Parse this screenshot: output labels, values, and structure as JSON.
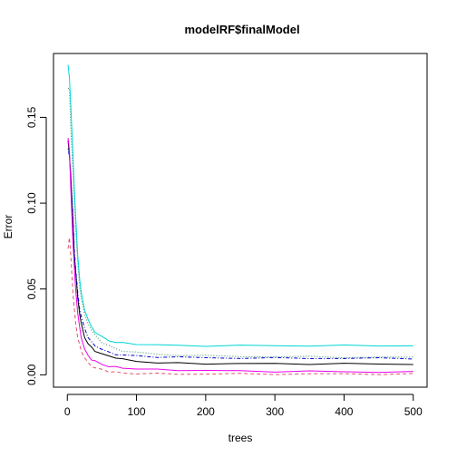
{
  "chart_data": {
    "type": "line",
    "title": "modelRF$finalModel",
    "xlabel": "trees",
    "ylabel": "Error",
    "xlim": [
      0,
      500
    ],
    "ylim": [
      0,
      0.18
    ],
    "x_ticks": [
      0,
      100,
      200,
      300,
      400,
      500
    ],
    "y_ticks": [
      0.0,
      0.05,
      0.1,
      0.15
    ],
    "x_tick_labels": [
      "0",
      "100",
      "200",
      "300",
      "400",
      "500"
    ],
    "y_tick_labels": [
      "0.00",
      "0.05",
      "0.10",
      "0.15"
    ],
    "grid": false,
    "legend": "none",
    "x": [
      1,
      3,
      5,
      8,
      10,
      12,
      15,
      18,
      20,
      25,
      30,
      35,
      40,
      50,
      60,
      70,
      80,
      100,
      130,
      160,
      200,
      250,
      300,
      350,
      400,
      450,
      500
    ],
    "series": [
      {
        "color": "#000000",
        "dash": "solid",
        "values": [
          0.135,
          0.13,
          0.115,
          0.09,
          0.072,
          0.06,
          0.045,
          0.035,
          0.03,
          0.022,
          0.018,
          0.016,
          0.014,
          0.012,
          0.011,
          0.01,
          0.009,
          0.008,
          0.007,
          0.0068,
          0.0066,
          0.0065,
          0.0065,
          0.0064,
          0.0064,
          0.0063,
          0.0063
        ]
      },
      {
        "color": "#DF536B",
        "dash": "dashed",
        "values": [
          0.075,
          0.08,
          0.068,
          0.05,
          0.038,
          0.03,
          0.022,
          0.017,
          0.014,
          0.01,
          0.007,
          0.005,
          0.004,
          0.003,
          0.002,
          0.0015,
          0.001,
          0.0008,
          0.0006,
          0.0005,
          0.0005,
          0.0005,
          0.0005,
          0.0005,
          0.0005,
          0.0005,
          0.0005
        ]
      },
      {
        "color": "#2E8B57",
        "dash": "dotted",
        "values": [
          0.168,
          0.165,
          0.145,
          0.12,
          0.1,
          0.085,
          0.065,
          0.05,
          0.045,
          0.035,
          0.03,
          0.026,
          0.023,
          0.019,
          0.017,
          0.015,
          0.014,
          0.013,
          0.012,
          0.0115,
          0.011,
          0.0108,
          0.0105,
          0.0105,
          0.0103,
          0.0102,
          0.0102
        ]
      },
      {
        "color": "#0000CC",
        "dash": "dotdash",
        "values": [
          0.13,
          0.128,
          0.115,
          0.092,
          0.075,
          0.062,
          0.048,
          0.038,
          0.034,
          0.027,
          0.022,
          0.019,
          0.017,
          0.015,
          0.013,
          0.012,
          0.0115,
          0.011,
          0.0105,
          0.0102,
          0.01,
          0.0098,
          0.0097,
          0.0097,
          0.0096,
          0.0096,
          0.0096
        ]
      },
      {
        "color": "#00D5D5",
        "dash": "solid",
        "values": [
          0.18,
          0.175,
          0.155,
          0.13,
          0.11,
          0.092,
          0.07,
          0.055,
          0.048,
          0.038,
          0.032,
          0.028,
          0.025,
          0.022,
          0.02,
          0.019,
          0.0185,
          0.018,
          0.0175,
          0.017,
          0.017,
          0.017,
          0.017,
          0.017,
          0.017,
          0.017,
          0.017
        ]
      },
      {
        "color": "#EE00EE",
        "dash": "solid",
        "values": [
          0.14,
          0.13,
          0.108,
          0.08,
          0.062,
          0.05,
          0.036,
          0.027,
          0.022,
          0.015,
          0.011,
          0.009,
          0.008,
          0.006,
          0.005,
          0.0045,
          0.004,
          0.0035,
          0.003,
          0.0028,
          0.0025,
          0.0022,
          0.002,
          0.002,
          0.0018,
          0.0017,
          0.0016
        ]
      }
    ]
  }
}
